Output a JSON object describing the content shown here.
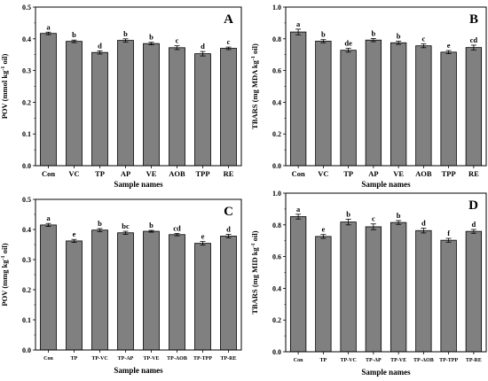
{
  "chart_data": [
    {
      "type": "bar",
      "panel_label": "A",
      "categories": [
        "Con",
        "VC",
        "TP",
        "AP",
        "VE",
        "AOB",
        "TPP",
        "RE"
      ],
      "values": [
        0.417,
        0.392,
        0.357,
        0.395,
        0.385,
        0.372,
        0.353,
        0.37
      ],
      "errors": [
        0.004,
        0.004,
        0.005,
        0.005,
        0.004,
        0.006,
        0.007,
        0.004
      ],
      "sig_labels": [
        "a",
        "b",
        "d",
        "b",
        "b",
        "c",
        "d",
        "c"
      ],
      "xlabel": "Sample names",
      "ylabel_main": "POV (mmol kg",
      "ylabel_sup": "-1",
      "ylabel_tail": " oil)",
      "ylim": [
        0,
        0.5
      ],
      "yticks": [
        "0.0",
        "0.1",
        "0.2",
        "0.3",
        "0.4",
        "0.5"
      ],
      "bar_color": "#808080"
    },
    {
      "type": "bar",
      "panel_label": "B",
      "categories": [
        "Con",
        "VC",
        "TP",
        "AP",
        "VE",
        "AOB",
        "TPP",
        "RE"
      ],
      "values": [
        0.843,
        0.785,
        0.728,
        0.792,
        0.775,
        0.756,
        0.716,
        0.745
      ],
      "errors": [
        0.018,
        0.01,
        0.012,
        0.01,
        0.01,
        0.012,
        0.01,
        0.015
      ],
      "sig_labels": [
        "a",
        "b",
        "de",
        "b",
        "b",
        "c",
        "e",
        "cd"
      ],
      "xlabel": "Sample names",
      "ylabel_main": "TBARS (mg MDA kg",
      "ylabel_sup": "-1",
      "ylabel_tail": " oil)",
      "ylim": [
        0,
        1.0
      ],
      "yticks": [
        "0.0",
        "0.2",
        "0.4",
        "0.6",
        "0.8",
        "1.0"
      ],
      "bar_color": "#808080"
    },
    {
      "type": "bar",
      "panel_label": "C",
      "categories": [
        "Con",
        "TP",
        "TP-VC",
        "TP-AP",
        "TP-VE",
        "TP-AOB",
        "TP-TPP",
        "TP-RE"
      ],
      "values": [
        0.415,
        0.362,
        0.398,
        0.389,
        0.394,
        0.383,
        0.354,
        0.378
      ],
      "errors": [
        0.005,
        0.005,
        0.005,
        0.005,
        0.003,
        0.004,
        0.006,
        0.006
      ],
      "sig_labels": [
        "a",
        "e",
        "b",
        "bc",
        "b",
        "cd",
        "e",
        "d"
      ],
      "xlabel": "Sample names",
      "ylabel_main": "POV (mmg kg",
      "ylabel_sup": "-1",
      "ylabel_tail": " oil)",
      "ylim": [
        0,
        0.5
      ],
      "yticks": [
        "0.0",
        "0.1",
        "0.2",
        "0.3",
        "0.4",
        "0.5"
      ],
      "bar_color": "#808080"
    },
    {
      "type": "bar",
      "panel_label": "D",
      "categories": [
        "Con",
        "TP",
        "TP-VC",
        "TP-AP",
        "TP-VE",
        "TP-AOB",
        "TP-TPP",
        "TP-RE"
      ],
      "values": [
        0.852,
        0.727,
        0.818,
        0.788,
        0.815,
        0.764,
        0.703,
        0.759
      ],
      "errors": [
        0.015,
        0.012,
        0.018,
        0.018,
        0.012,
        0.015,
        0.012,
        0.012
      ],
      "sig_labels": [
        "a",
        "e",
        "b",
        "c",
        "b",
        "d",
        "f",
        "d"
      ],
      "xlabel": "Sample names",
      "ylabel_main": "TBARS (mg MID kg",
      "ylabel_sup": "-1",
      "ylabel_tail": " oil)",
      "ylim": [
        0,
        1.0
      ],
      "yticks": [
        "0.0",
        "0.2",
        "0.4",
        "0.6",
        "0.8",
        "1.0"
      ],
      "bar_color": "#808080"
    }
  ]
}
